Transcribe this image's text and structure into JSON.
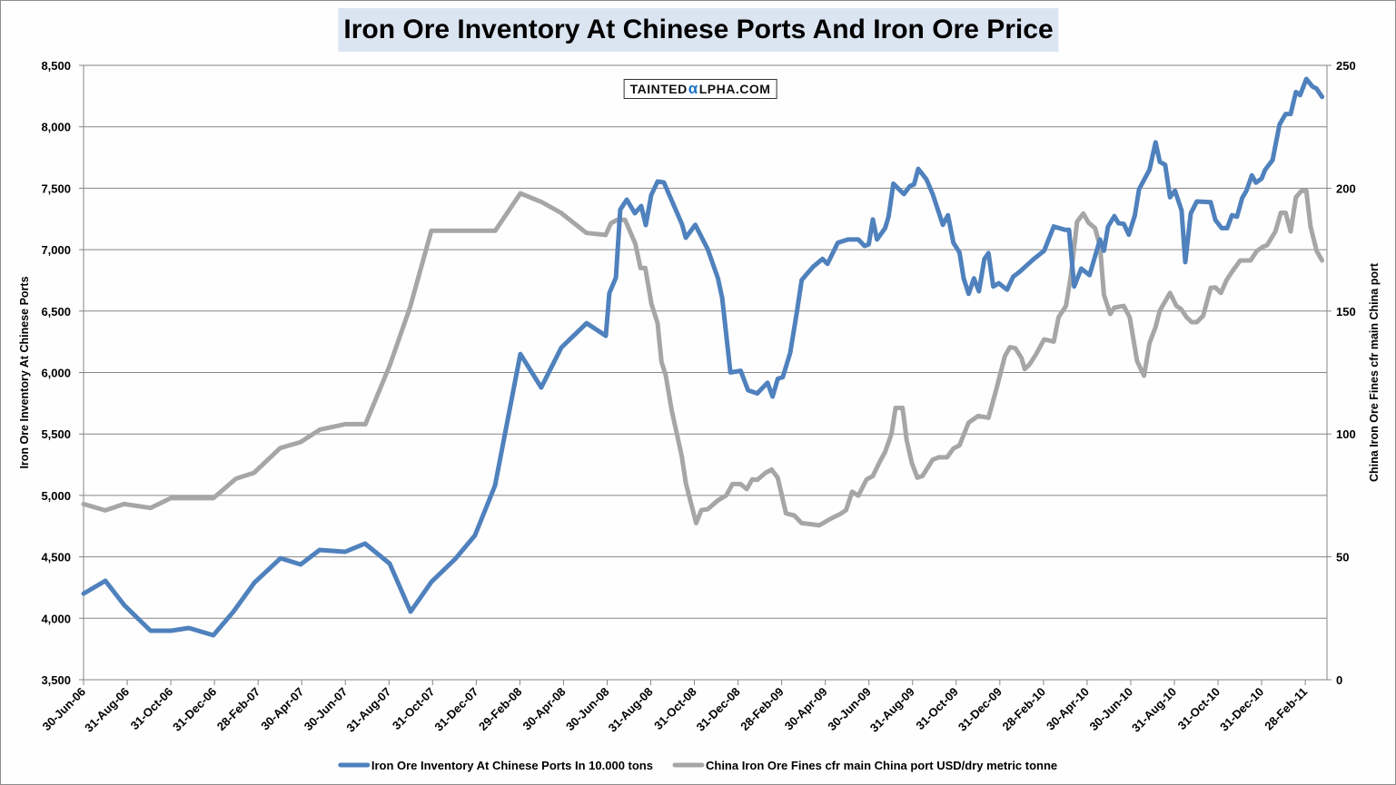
{
  "chart_data": {
    "type": "line",
    "title": "Iron Ore Inventory At Chinese Ports And Iron Ore Price",
    "watermark": {
      "pre": "TAINTED",
      "alpha": "α",
      "post": "LPHA.COM"
    },
    "xlabel": "",
    "x_unit": "months since 30-Jun-06",
    "x_ticks": [
      "30-Jun-06",
      "31-Aug-06",
      "31-Oct-06",
      "31-Dec-06",
      "28-Feb-07",
      "30-Apr-07",
      "30-Jun-07",
      "31-Aug-07",
      "31-Oct-07",
      "31-Dec-07",
      "29-Feb-08",
      "30-Apr-08",
      "30-Jun-08",
      "31-Aug-08",
      "31-Oct-08",
      "31-Dec-08",
      "28-Feb-09",
      "30-Apr-09",
      "30-Jun-09",
      "31-Aug-09",
      "31-Oct-09",
      "31-Dec-09",
      "28-Feb-10",
      "30-Apr-10",
      "30-Jun-10",
      "31-Aug-10",
      "31-Oct-10",
      "31-Dec-10",
      "28-Feb-11"
    ],
    "x_tick_step_months": 2,
    "xlim": [
      0,
      57
    ],
    "y_left": {
      "label": "Iron Ore Inventory At Chinese Ports",
      "lim": [
        3500,
        8500
      ],
      "ticks": [
        "3,500",
        "4,000",
        "4,500",
        "5,000",
        "5,500",
        "6,000",
        "6,500",
        "7,000",
        "7,500",
        "8,000",
        "8,500"
      ],
      "step": 500
    },
    "y_right": {
      "label": "China Iron Ore Fines cfr main China port",
      "lim": [
        0,
        250
      ],
      "ticks": [
        "0",
        "50",
        "100",
        "150",
        "200",
        "250"
      ],
      "step": 50
    },
    "grid": true,
    "legend_position": "bottom",
    "series": [
      {
        "name": "Iron Ore Inventory At Chinese Ports In 10.000 tons",
        "axis": "left",
        "color": "#4f81bd",
        "points": [
          [
            0,
            4201
          ],
          [
            1,
            4305
          ],
          [
            1.87,
            4106
          ],
          [
            3.07,
            3899
          ],
          [
            4,
            3899
          ],
          [
            4.83,
            3921
          ],
          [
            5.95,
            3862
          ],
          [
            6.87,
            4054
          ],
          [
            7.83,
            4290
          ],
          [
            9.03,
            4489
          ],
          [
            9.95,
            4438
          ],
          [
            10.82,
            4556
          ],
          [
            11.99,
            4541
          ],
          [
            12.9,
            4608
          ],
          [
            14.03,
            4445
          ],
          [
            14.99,
            4054
          ],
          [
            15.95,
            4297
          ],
          [
            17.03,
            4482
          ],
          [
            17.94,
            4674
          ],
          [
            18.86,
            5080
          ],
          [
            20.02,
            6151
          ],
          [
            20.98,
            5878
          ],
          [
            21.9,
            6203
          ],
          [
            23.06,
            6402
          ],
          [
            23.94,
            6299
          ],
          [
            24.1,
            6646
          ],
          [
            24.4,
            6772
          ],
          [
            24.6,
            7326
          ],
          [
            24.9,
            7407
          ],
          [
            25.27,
            7296
          ],
          [
            25.56,
            7355
          ],
          [
            25.77,
            7200
          ],
          [
            26.02,
            7444
          ],
          [
            26.31,
            7555
          ],
          [
            26.6,
            7547
          ],
          [
            27.43,
            7207
          ],
          [
            27.6,
            7097
          ],
          [
            28.04,
            7202
          ],
          [
            28.61,
            7004
          ],
          [
            29.08,
            6766
          ],
          [
            29.27,
            6608
          ],
          [
            29.65,
            6001
          ],
          [
            30.12,
            6014
          ],
          [
            30.46,
            5856
          ],
          [
            30.88,
            5830
          ],
          [
            31.35,
            5917
          ],
          [
            31.58,
            5804
          ],
          [
            31.82,
            5949
          ],
          [
            32.05,
            5962
          ],
          [
            32.39,
            6160
          ],
          [
            32.68,
            6476
          ],
          [
            32.92,
            6753
          ],
          [
            33.43,
            6859
          ],
          [
            33.87,
            6925
          ],
          [
            34.1,
            6885
          ],
          [
            34.57,
            7056
          ],
          [
            35.04,
            7083
          ],
          [
            35.51,
            7083
          ],
          [
            35.8,
            7030
          ],
          [
            35.99,
            7043
          ],
          [
            36.18,
            7246
          ],
          [
            36.37,
            7083
          ],
          [
            36.74,
            7175
          ],
          [
            36.9,
            7268
          ],
          [
            37.12,
            7537
          ],
          [
            37.6,
            7452
          ],
          [
            37.88,
            7518
          ],
          [
            38.07,
            7531
          ],
          [
            38.26,
            7658
          ],
          [
            38.64,
            7571
          ],
          [
            38.92,
            7452
          ],
          [
            39.39,
            7202
          ],
          [
            39.62,
            7281
          ],
          [
            39.87,
            7056
          ],
          [
            40.15,
            6977
          ],
          [
            40.34,
            6766
          ],
          [
            40.57,
            6640
          ],
          [
            40.81,
            6766
          ],
          [
            41.04,
            6661
          ],
          [
            41.29,
            6925
          ],
          [
            41.48,
            6972
          ],
          [
            41.7,
            6700
          ],
          [
            41.95,
            6727
          ],
          [
            42.33,
            6674
          ],
          [
            42.61,
            6780
          ],
          [
            42.9,
            6819
          ],
          [
            43.56,
            6925
          ],
          [
            44.03,
            6991
          ],
          [
            44.47,
            7188
          ],
          [
            44.98,
            7162
          ],
          [
            45.17,
            7162
          ],
          [
            45.41,
            6700
          ],
          [
            45.73,
            6846
          ],
          [
            46.11,
            6793
          ],
          [
            46.59,
            7083
          ],
          [
            46.77,
            6991
          ],
          [
            46.96,
            7188
          ],
          [
            47.25,
            7273
          ],
          [
            47.44,
            7215
          ],
          [
            47.68,
            7210
          ],
          [
            47.91,
            7122
          ],
          [
            48.19,
            7281
          ],
          [
            48.38,
            7492
          ],
          [
            48.86,
            7650
          ],
          [
            49.14,
            7874
          ],
          [
            49.33,
            7716
          ],
          [
            49.58,
            7690
          ],
          [
            49.8,
            7426
          ],
          [
            50.03,
            7479
          ],
          [
            50.33,
            7320
          ],
          [
            50.5,
            6898
          ],
          [
            50.75,
            7294
          ],
          [
            51.03,
            7392
          ],
          [
            51.66,
            7386
          ],
          [
            51.88,
            7241
          ],
          [
            52.17,
            7175
          ],
          [
            52.42,
            7175
          ],
          [
            52.64,
            7281
          ],
          [
            52.87,
            7268
          ],
          [
            53.11,
            7421
          ],
          [
            53.3,
            7479
          ],
          [
            53.55,
            7605
          ],
          [
            53.74,
            7545
          ],
          [
            54.0,
            7579
          ],
          [
            54.16,
            7650
          ],
          [
            54.5,
            7729
          ],
          [
            54.82,
            8019
          ],
          [
            55.1,
            8104
          ],
          [
            55.33,
            8104
          ],
          [
            55.57,
            8283
          ],
          [
            55.76,
            8257
          ],
          [
            56.05,
            8389
          ],
          [
            56.33,
            8328
          ],
          [
            56.52,
            8310
          ],
          [
            56.77,
            8244
          ]
        ]
      },
      {
        "name": "China Iron Ore Fines cfr main China port USD/dry metric tonne",
        "axis": "right",
        "color": "#a6a6a6",
        "points": [
          [
            0,
            71.5
          ],
          [
            0.99,
            68.9
          ],
          [
            1.86,
            71.5
          ],
          [
            3.07,
            69.9
          ],
          [
            4,
            73.9
          ],
          [
            5.95,
            73.9
          ],
          [
            6.98,
            81.8
          ],
          [
            7.81,
            84.2
          ],
          [
            9.02,
            94.3
          ],
          [
            9.95,
            96.7
          ],
          [
            10.84,
            101.8
          ],
          [
            12,
            104
          ],
          [
            12.92,
            104
          ],
          [
            14.04,
            128
          ],
          [
            14.97,
            151.7
          ],
          [
            15.94,
            182.7
          ],
          [
            18.87,
            182.7
          ],
          [
            20.02,
            197.9
          ],
          [
            21.01,
            194.3
          ],
          [
            21.88,
            190
          ],
          [
            23.05,
            181.8
          ],
          [
            23.93,
            181
          ],
          [
            24.17,
            185.7
          ],
          [
            24.45,
            187.1
          ],
          [
            24.82,
            187.1
          ],
          [
            25.29,
            177.4
          ],
          [
            25.53,
            167.5
          ],
          [
            25.75,
            167.5
          ],
          [
            26.03,
            153
          ],
          [
            26.31,
            145.1
          ],
          [
            26.49,
            129.3
          ],
          [
            26.68,
            124
          ],
          [
            26.96,
            109.5
          ],
          [
            27.42,
            91
          ],
          [
            27.61,
            79.8
          ],
          [
            28.08,
            63.7
          ],
          [
            28.32,
            69
          ],
          [
            28.61,
            69.4
          ],
          [
            29.08,
            73
          ],
          [
            29.46,
            75
          ],
          [
            29.74,
            79.6
          ],
          [
            30.12,
            79.6
          ],
          [
            30.4,
            77.6
          ],
          [
            30.65,
            81.5
          ],
          [
            30.88,
            81.3
          ],
          [
            31.26,
            84.2
          ],
          [
            31.54,
            85.5
          ],
          [
            31.82,
            82.2
          ],
          [
            32.2,
            67.7
          ],
          [
            32.58,
            66.8
          ],
          [
            32.92,
            63.7
          ],
          [
            33.34,
            63.3
          ],
          [
            33.72,
            62.8
          ],
          [
            34.28,
            65.7
          ],
          [
            34.66,
            67.3
          ],
          [
            34.95,
            69
          ],
          [
            35.23,
            76.5
          ],
          [
            35.51,
            74.9
          ],
          [
            35.89,
            81.5
          ],
          [
            36.18,
            82.9
          ],
          [
            36.46,
            88.1
          ],
          [
            36.74,
            92.7
          ],
          [
            37.03,
            100
          ],
          [
            37.22,
            110.6
          ],
          [
            37.54,
            110.6
          ],
          [
            37.73,
            97.4
          ],
          [
            37.97,
            88.1
          ],
          [
            38.22,
            82.2
          ],
          [
            38.45,
            82.9
          ],
          [
            38.92,
            89.5
          ],
          [
            39.2,
            90.5
          ],
          [
            39.58,
            90.5
          ],
          [
            39.87,
            94.1
          ],
          [
            40.15,
            95.4
          ],
          [
            40.57,
            104.6
          ],
          [
            41,
            107.3
          ],
          [
            41.48,
            106.6
          ],
          [
            41.85,
            118.5
          ],
          [
            42.23,
            131.7
          ],
          [
            42.46,
            135.3
          ],
          [
            42.71,
            134.9
          ],
          [
            42.99,
            131
          ],
          [
            43.14,
            126.4
          ],
          [
            43.37,
            128.4
          ],
          [
            43.65,
            132.3
          ],
          [
            44.03,
            138.5
          ],
          [
            44.47,
            137.6
          ],
          [
            44.69,
            147.5
          ],
          [
            45.03,
            152.1
          ],
          [
            45.26,
            164.6
          ],
          [
            45.54,
            186.4
          ],
          [
            45.83,
            189.7
          ],
          [
            46.06,
            186
          ],
          [
            46.36,
            183.8
          ],
          [
            46.59,
            176.5
          ],
          [
            46.77,
            156.7
          ],
          [
            47.06,
            148.8
          ],
          [
            47.25,
            151.4
          ],
          [
            47.68,
            152.1
          ],
          [
            47.95,
            147.5
          ],
          [
            48.29,
            129.7
          ],
          [
            48.61,
            123.7
          ],
          [
            48.86,
            137
          ],
          [
            49.14,
            143.5
          ],
          [
            49.33,
            150.1
          ],
          [
            49.8,
            157.4
          ],
          [
            50.09,
            152.1
          ],
          [
            50.31,
            150.8
          ],
          [
            50.56,
            147.5
          ],
          [
            50.79,
            145.5
          ],
          [
            51.03,
            145.5
          ],
          [
            51.32,
            148.1
          ],
          [
            51.66,
            159.4
          ],
          [
            51.88,
            159.6
          ],
          [
            52.13,
            157.4
          ],
          [
            52.4,
            162.7
          ],
          [
            52.64,
            166
          ],
          [
            53.02,
            170.6
          ],
          [
            53.49,
            170.6
          ],
          [
            53.78,
            174.5
          ],
          [
            54.06,
            176.2
          ],
          [
            54.25,
            176.8
          ],
          [
            54.63,
            182.4
          ],
          [
            54.88,
            190
          ],
          [
            55.1,
            190
          ],
          [
            55.33,
            182.4
          ],
          [
            55.57,
            196.3
          ],
          [
            55.82,
            198.9
          ],
          [
            56.05,
            198.9
          ],
          [
            56.24,
            184.4
          ],
          [
            56.52,
            174.5
          ],
          [
            56.77,
            170.6
          ]
        ]
      }
    ]
  }
}
